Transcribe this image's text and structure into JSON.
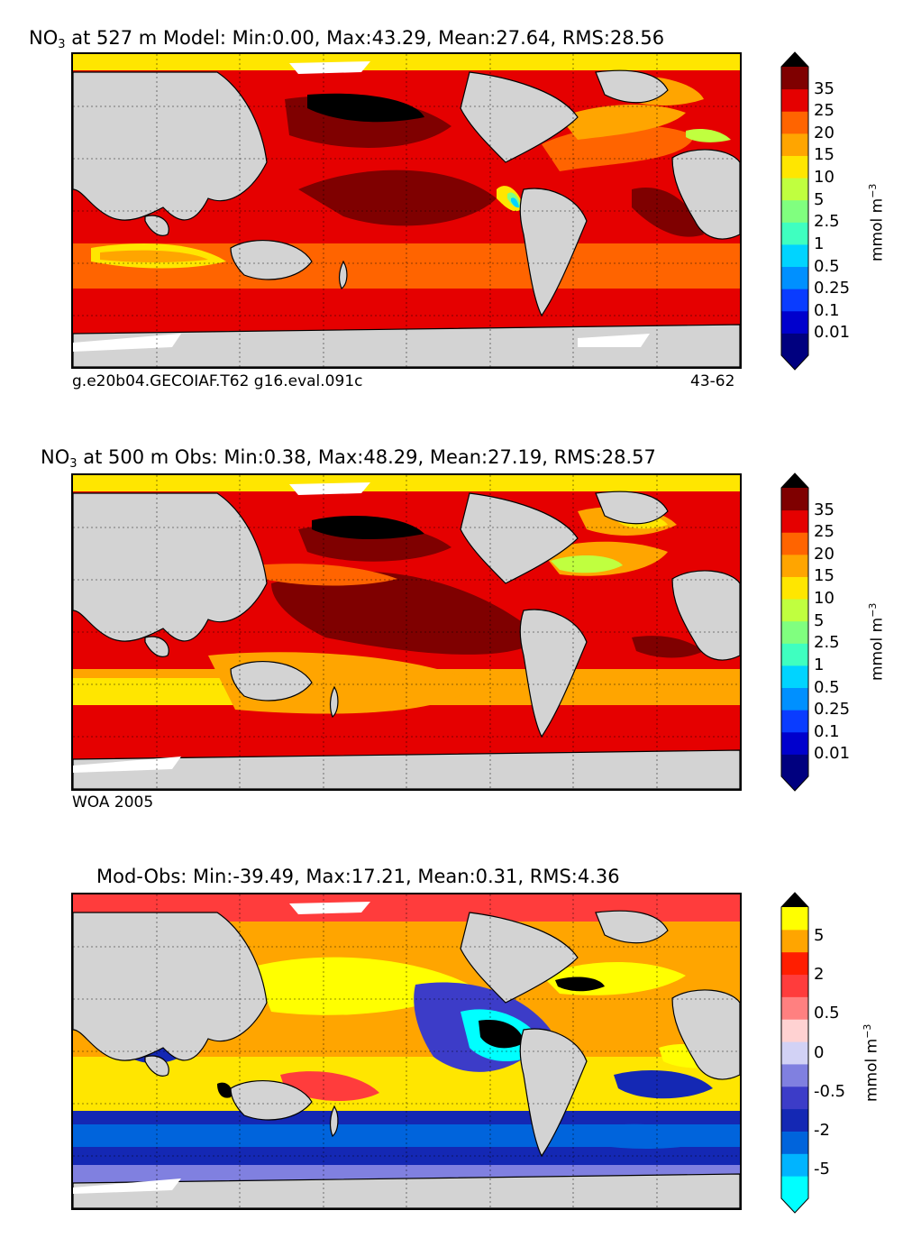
{
  "panels": [
    {
      "title_prefix": "NO",
      "title_sub": "3",
      "title_rest": " at 527 m Model: Min:0.00, Max:43.29, Mean:27.64, RMS:28.56",
      "footer_left": "g.e20b04.GECOIAF.T62 g16.eval.091c",
      "footer_right": "43-62",
      "colorbar": {
        "labels": [
          "35",
          "25",
          "20",
          "15",
          "10",
          "5",
          "2.5",
          "1",
          "0.5",
          "0.25",
          "0.1",
          "0.01"
        ],
        "colors": [
          "#00007f",
          "#0000cd",
          "#0a3cff",
          "#0090ff",
          "#00d4ff",
          "#3fffc0",
          "#80ff7f",
          "#c0ff3f",
          "#ffe600",
          "#ffa500",
          "#ff6400",
          "#e50000",
          "#7f0000"
        ],
        "unit": "mmol m",
        "unit_exp": "−3"
      }
    },
    {
      "title_prefix": "NO",
      "title_sub": "3",
      "title_rest": " at 500 m Obs: Min:0.38, Max:48.29, Mean:27.19, RMS:28.57",
      "footer_left": "WOA 2005",
      "footer_right": "",
      "colorbar": {
        "labels": [
          "35",
          "25",
          "20",
          "15",
          "10",
          "5",
          "2.5",
          "1",
          "0.5",
          "0.25",
          "0.1",
          "0.01"
        ],
        "colors": [
          "#00007f",
          "#0000cd",
          "#0a3cff",
          "#0090ff",
          "#00d4ff",
          "#3fffc0",
          "#80ff7f",
          "#c0ff3f",
          "#ffe600",
          "#ffa500",
          "#ff6400",
          "#e50000",
          "#7f0000"
        ],
        "unit": "mmol m",
        "unit_exp": "−3"
      }
    },
    {
      "title_prefix": "",
      "title_sub": "",
      "title_rest": "Mod-Obs: Min:-39.49, Max:17.21, Mean:0.31, RMS:4.36",
      "footer_left": "",
      "footer_right": "",
      "colorbar": {
        "labels": [
          "5",
          "2",
          "0.5",
          "0",
          "-0.5",
          "-2",
          "-5"
        ],
        "colors": [
          "#00ffff",
          "#00b4ff",
          "#0064dc",
          "#1428b4",
          "#3c3cc8",
          "#8080e0",
          "#d2d2f5",
          "#ffd2d2",
          "#ff8080",
          "#ff3c3c",
          "#ff1e00",
          "#ffa500",
          "#ffff00"
        ],
        "unit": "mmol m",
        "unit_exp": "−3"
      }
    }
  ],
  "colors": {
    "land": "#d3d3d3",
    "sea_ice": "#ffffff",
    "coast": "#000000"
  }
}
